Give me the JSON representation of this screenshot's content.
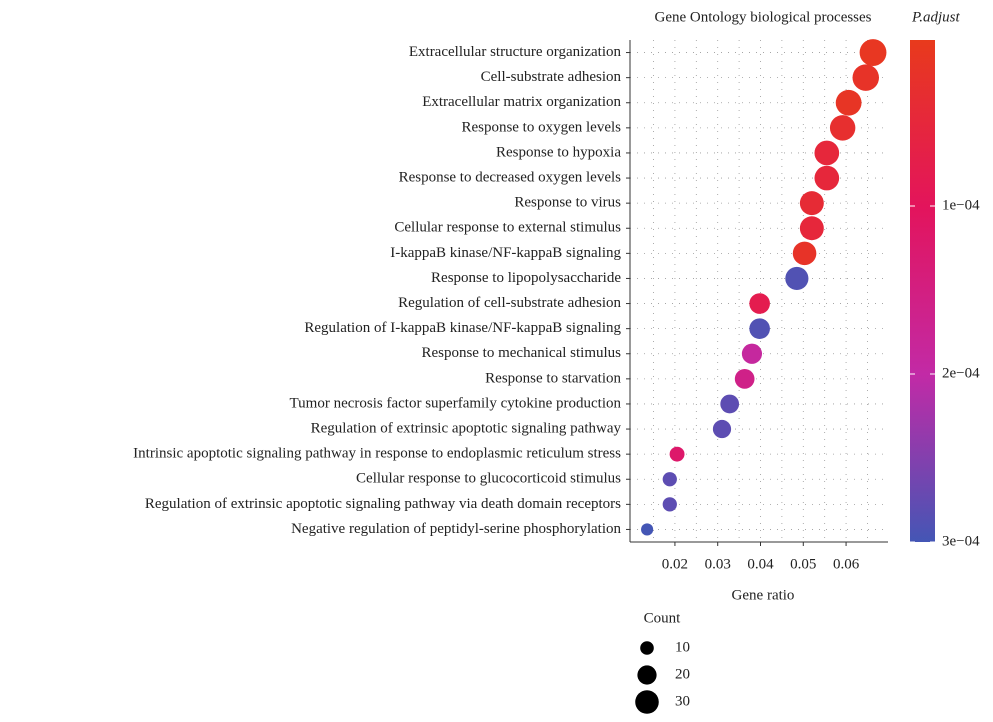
{
  "chart_data": {
    "type": "dot",
    "title": "Gene Ontology biological processes",
    "x_label": "Gene ratio",
    "categories": [
      "Extracellular structure organization",
      "Cell-substrate adhesion",
      "Extracellular matrix organization",
      "Response to oxygen levels",
      "Response to hypoxia",
      "Response to decreased oxygen levels",
      "Response to virus",
      "Cellular response to external stimulus",
      "I-kappaB kinase/NF-kappaB signaling",
      "Response to lipopolysaccharide",
      "Regulation of cell-substrate adhesion",
      "Regulation of I-kappaB kinase/NF-kappaB signaling",
      "Response to mechanical stimulus",
      "Response to starvation",
      "Tumor necrosis factor superfamily cytokine production",
      "Regulation of extrinsic apoptotic signaling pathway",
      "Intrinsic apoptotic signaling pathway in response to endoplasmic reticulum stress",
      "Cellular response to glucocorticoid stimulus",
      "Regulation of extrinsic apoptotic signaling pathway via death domain receptors",
      "Negative regulation of peptidyl-serine phosphorylation"
    ],
    "values": [
      0.0663,
      0.0646,
      0.0606,
      0.0592,
      0.0555,
      0.0555,
      0.052,
      0.052,
      0.0503,
      0.0485,
      0.0398,
      0.0398,
      0.038,
      0.0363,
      0.0328,
      0.031,
      0.0205,
      0.0188,
      0.0188,
      0.0135
    ],
    "counts": [
      39,
      38,
      36,
      35,
      33,
      33,
      31,
      31,
      30,
      29,
      23,
      23,
      22,
      21,
      19,
      18,
      12,
      11,
      11,
      8
    ],
    "p_adjust": [
      1e-05,
      2e-05,
      1.5e-05,
      3e-05,
      5e-05,
      5e-05,
      4e-05,
      5e-05,
      2e-05,
      0.00029,
      8e-05,
      0.00029,
      0.00019,
      0.00016,
      0.00028,
      0.00028,
      0.00012,
      0.00028,
      0.00028,
      0.0003
    ],
    "xlim": [
      0.0095,
      0.0698
    ],
    "xticks": [
      0.02,
      0.03,
      0.04,
      0.05,
      0.06
    ],
    "grid": true,
    "colorbar_title": "P.adjust",
    "colorlim": [
      1.2e-06,
      0.0003
    ],
    "colorticks": [
      {
        "value": 0.0001,
        "label": "1e−04"
      },
      {
        "value": 0.0002,
        "label": "2e−04"
      },
      {
        "value": 0.0003,
        "label": "3e−04"
      }
    ],
    "colorscale": [
      "#e83a1c",
      "#e3145c",
      "#c22aa6",
      "#4456b5"
    ],
    "size_legend_title": "Count",
    "size_legend": [
      10,
      20,
      30
    ],
    "size_legend_color": "#000000"
  }
}
